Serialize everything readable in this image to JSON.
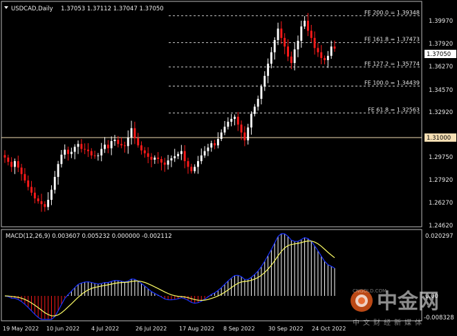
{
  "header": {
    "symbol": "USDCAD,Daily",
    "ohlc": "1.37053 1.37112 1.37047 1.37050"
  },
  "price_axis": {
    "ticks": [
      "1.39970",
      "1.37920",
      "1.36270",
      "1.34570",
      "1.32920",
      "1.29750",
      "1.27920",
      "1.26270",
      "1.24620"
    ],
    "current_price_label": "1.37050",
    "hline_label": "1.31000"
  },
  "fib_levels": [
    {
      "label": "FE 200.0 = 1.39348",
      "price": 1.39348
    },
    {
      "label": "FE 161.8 = 1.37473",
      "price": 1.37473
    },
    {
      "label": "FE 127.2 = 1.35774",
      "price": 1.35774
    },
    {
      "label": "FE 100.0 = 1.34439",
      "price": 1.34439
    },
    {
      "label": "FE 61.8 = 1.32563",
      "price": 1.32563
    }
  ],
  "macd": {
    "label": "MACD(12,26,9) 0.003607 0.005232 0.000000 -0.002112",
    "ticks": [
      "0.020297",
      "0.00",
      "-0.008328"
    ]
  },
  "time_axis": [
    "19 May 2022",
    "10 Jun 2022",
    "4 Jul 2022",
    "26 Jul 2022",
    "17 Aug 2022",
    "8 Sep 2022",
    "30 Sep 2022",
    "24 Oct 2022"
  ],
  "watermark": {
    "brand": "中金网",
    "site": "CNGOLD.COM",
    "tagline": "中文财经新媒体"
  },
  "colors": {
    "bull": "#ffffff",
    "bear": "#ff1a1a",
    "signal": "#ffff66",
    "macd_line": "#1a33ff",
    "hline": "#f5deb3"
  },
  "chart_data": {
    "type": "candlestick",
    "timeframe": "Daily",
    "price_close_path": [
      1.2945,
      1.2915,
      1.288,
      1.292,
      1.2875,
      1.283,
      1.2785,
      1.274,
      1.27,
      1.266,
      1.264,
      1.262,
      1.26,
      1.265,
      1.272,
      1.281,
      1.29,
      1.2965,
      1.3,
      1.297,
      1.2985,
      1.302,
      1.304,
      1.3005,
      1.3,
      1.299,
      1.296,
      1.2955,
      1.296,
      1.3005,
      1.3035,
      1.301,
      1.306,
      1.307,
      1.304,
      1.303,
      1.3025,
      1.3085,
      1.315,
      1.308,
      1.303,
      1.2995,
      1.2975,
      1.295,
      1.293,
      1.2945,
      1.2935,
      1.291,
      1.2895,
      1.2925,
      1.294,
      1.2955,
      1.297,
      1.299,
      1.292,
      1.288,
      1.285,
      1.288,
      1.292,
      1.296,
      1.299,
      1.3015,
      1.3045,
      1.303,
      1.3075,
      1.312,
      1.316,
      1.3195,
      1.3215,
      1.323,
      1.3175,
      1.312,
      1.3065,
      1.3155,
      1.325,
      1.33,
      1.3355,
      1.344,
      1.3515,
      1.36,
      1.368,
      1.3765,
      1.3845,
      1.378,
      1.372,
      1.365,
      1.3605,
      1.37,
      1.376,
      1.386,
      1.39,
      1.383,
      1.378,
      1.371,
      1.368,
      1.364,
      1.3625,
      1.3655,
      1.372,
      1.3705
    ],
    "fib_expansion": [
      1.39348,
      1.37473,
      1.35774,
      1.34439,
      1.32563
    ],
    "horizontal_line": 1.31,
    "ylim": [
      1.2462,
      1.4035
    ]
  }
}
